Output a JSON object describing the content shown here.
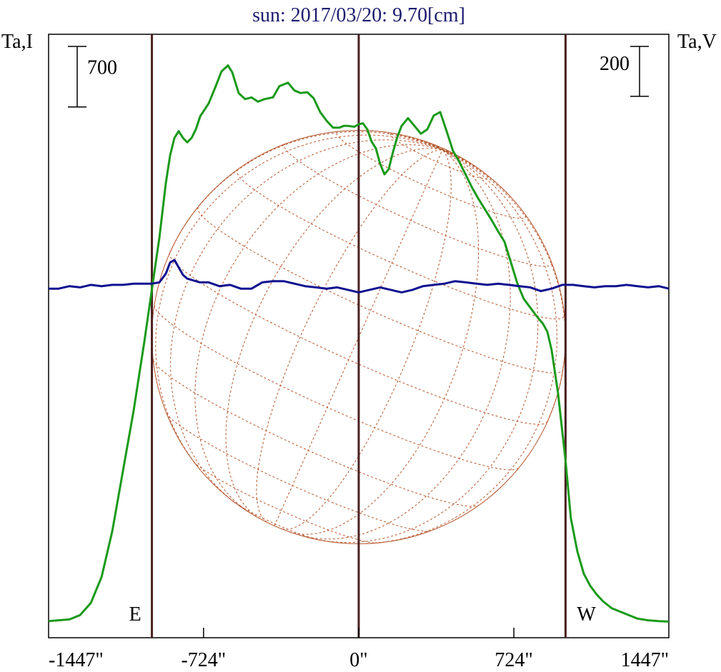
{
  "title": "sun: 2017/03/20: 9.70[cm]",
  "left_axis_label": "Ta,I",
  "right_axis_label": "Ta,V",
  "colors": {
    "title": "#1a1a6e",
    "frame": "#000000",
    "limb_lines": "#4a2020",
    "intensity": "#1a9a1a",
    "polarization": "#101090",
    "grid": "#b5542a"
  },
  "chart_data": {
    "type": "line",
    "x_unit": "arcsec",
    "xlim": [
      -1447,
      1447
    ],
    "x_ticks": [
      -1447,
      -724,
      0,
      724,
      1447
    ],
    "x_tick_labels": [
      "-1447\"",
      "-724\"",
      "0\"",
      "724\"",
      "1447\""
    ],
    "limb_markers": [
      {
        "x": -965,
        "label": "E"
      },
      {
        "x": 0,
        "label": ""
      },
      {
        "x": 965,
        "label": "W"
      }
    ],
    "scale_bars": [
      {
        "axis": "left",
        "label": "700",
        "value": 700
      },
      {
        "axis": "right",
        "label": "200",
        "value": 200
      }
    ],
    "y_left": {
      "label": "Ta,I",
      "ylim": [
        0,
        6800
      ]
    },
    "y_right": {
      "label": "Ta,V",
      "ylim": [
        -1400,
        1020
      ]
    },
    "series": [
      {
        "axis": "left",
        "color": "#1a9a1a",
        "x": [
          -1447,
          -1350,
          -1300,
          -1250,
          -1200,
          -1150,
          -1100,
          -1050,
          -1000,
          -965,
          -930,
          -900,
          -880,
          -860,
          -840,
          -820,
          -800,
          -780,
          -760,
          -740,
          -700,
          -670,
          -640,
          -610,
          -590,
          -560,
          -530,
          -500,
          -470,
          -440,
          -400,
          -370,
          -330,
          -300,
          -270,
          -240,
          -210,
          -180,
          -150,
          -120,
          -90,
          -70,
          -50,
          -20,
          0,
          20,
          40,
          60,
          80,
          100,
          120,
          140,
          160,
          180,
          200,
          230,
          260,
          290,
          320,
          350,
          380,
          410,
          440,
          470,
          500,
          530,
          560,
          590,
          620,
          650,
          680,
          710,
          740,
          770,
          800,
          830,
          860,
          880,
          900,
          930,
          965,
          990,
          1020,
          1050,
          1080,
          1110,
          1140,
          1180,
          1250,
          1300,
          1350,
          1400,
          1447
        ],
        "values": [
          10,
          30,
          80,
          220,
          520,
          1050,
          1750,
          2450,
          3250,
          3850,
          4450,
          5080,
          5400,
          5600,
          5680,
          5600,
          5550,
          5600,
          5700,
          5850,
          6000,
          6180,
          6370,
          6440,
          6360,
          6120,
          6050,
          6070,
          6020,
          6050,
          6070,
          6200,
          6240,
          6150,
          6120,
          6130,
          6060,
          5900,
          5800,
          5720,
          5720,
          5740,
          5740,
          5730,
          5760,
          5770,
          5700,
          5560,
          5480,
          5300,
          5180,
          5240,
          5440,
          5610,
          5740,
          5830,
          5740,
          5650,
          5700,
          5860,
          5900,
          5680,
          5450,
          5320,
          5170,
          5020,
          4890,
          4770,
          4650,
          4520,
          4400,
          4160,
          3920,
          3740,
          3640,
          3540,
          3450,
          3360,
          3150,
          2650,
          1870,
          1200,
          820,
          560,
          420,
          320,
          240,
          160,
          90,
          40,
          20,
          10,
          5
        ]
      },
      {
        "axis": "right",
        "color": "#101090",
        "x": [
          -1447,
          -1400,
          -1350,
          -1300,
          -1250,
          -1200,
          -1150,
          -1100,
          -1050,
          -1000,
          -965,
          -930,
          -900,
          -880,
          -860,
          -840,
          -820,
          -800,
          -780,
          -760,
          -740,
          -700,
          -650,
          -600,
          -550,
          -500,
          -450,
          -400,
          -350,
          -300,
          -250,
          -200,
          -150,
          -100,
          -50,
          0,
          50,
          100,
          150,
          200,
          250,
          300,
          350,
          400,
          450,
          500,
          550,
          600,
          650,
          700,
          750,
          800,
          850,
          900,
          950,
          965,
          1000,
          1050,
          1100,
          1150,
          1200,
          1250,
          1300,
          1350,
          1400,
          1447
        ],
        "values": [
          0,
          0,
          10,
          5,
          15,
          10,
          15,
          15,
          20,
          20,
          20,
          25,
          60,
          105,
          115,
          85,
          55,
          40,
          35,
          30,
          25,
          25,
          10,
          15,
          0,
          0,
          25,
          30,
          30,
          20,
          10,
          5,
          0,
          5,
          -5,
          -15,
          -5,
          5,
          -5,
          -15,
          -5,
          10,
          15,
          20,
          30,
          25,
          20,
          15,
          20,
          15,
          10,
          5,
          -10,
          0,
          15,
          15,
          15,
          10,
          5,
          10,
          10,
          15,
          10,
          5,
          10,
          0
        ]
      }
    ]
  }
}
